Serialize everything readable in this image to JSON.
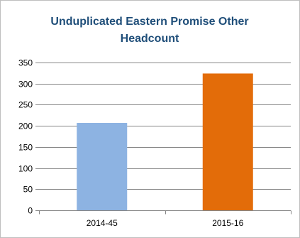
{
  "chart_data": {
    "type": "bar",
    "title": "Unduplicated Eastern Promise Other Headcount",
    "xlabel": "",
    "ylabel": "",
    "categories": [
      "2014-45",
      "2015-16"
    ],
    "values": [
      207,
      324
    ],
    "colors": [
      "#8db3e2",
      "#e36c09"
    ],
    "ylim": [
      0,
      350
    ],
    "yticks": [
      0,
      50,
      100,
      150,
      200,
      250,
      300,
      350
    ],
    "grid": true,
    "legend": "none"
  }
}
